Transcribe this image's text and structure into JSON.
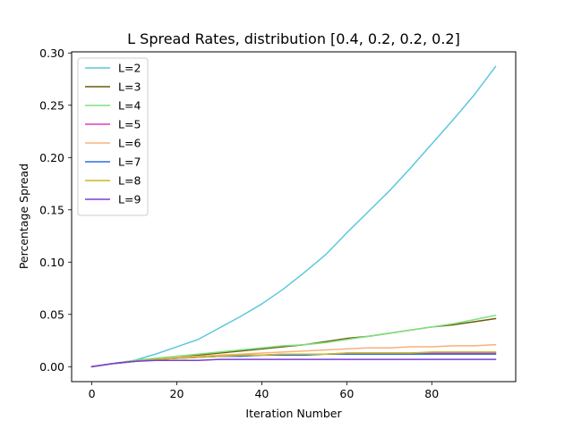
{
  "chart_data": {
    "type": "line",
    "title": "L Spread Rates, distribution [0.4, 0.2, 0.2, 0.2]",
    "xlabel": "Iteration Number",
    "ylabel": "Percentage Spread",
    "xlim": [
      -4.75,
      99.75
    ],
    "ylim": [
      -0.0143,
      0.3011
    ],
    "xticks": [
      0,
      20,
      40,
      60,
      80
    ],
    "xtick_labels": [
      "0",
      "20",
      "40",
      "60",
      "80"
    ],
    "yticks": [
      0.0,
      0.05,
      0.1,
      0.15,
      0.2,
      0.25,
      0.3
    ],
    "ytick_labels": [
      "0.00",
      "0.05",
      "0.10",
      "0.15",
      "0.20",
      "0.25",
      "0.30"
    ],
    "grid": false,
    "legend_position": "top-left",
    "x": [
      0,
      5,
      10,
      15,
      20,
      25,
      30,
      35,
      40,
      45,
      50,
      55,
      60,
      65,
      70,
      75,
      80,
      85,
      90,
      95
    ],
    "series": [
      {
        "name": "L=2",
        "color": "#5bc8dc",
        "values": [
          0.0,
          0.003,
          0.006,
          0.012,
          0.019,
          0.026,
          0.037,
          0.048,
          0.06,
          0.074,
          0.09,
          0.107,
          0.128,
          0.148,
          0.168,
          0.19,
          0.213,
          0.236,
          0.26,
          0.287
        ]
      },
      {
        "name": "L=3",
        "color": "#6b5a0e",
        "values": [
          0.0,
          0.003,
          0.005,
          0.007,
          0.009,
          0.011,
          0.013,
          0.015,
          0.017,
          0.019,
          0.021,
          0.024,
          0.027,
          0.029,
          0.032,
          0.035,
          0.038,
          0.04,
          0.043,
          0.046
        ]
      },
      {
        "name": "L=4",
        "color": "#7ee27e",
        "values": [
          0.0,
          0.003,
          0.006,
          0.008,
          0.01,
          0.012,
          0.014,
          0.016,
          0.018,
          0.02,
          0.021,
          0.023,
          0.026,
          0.029,
          0.032,
          0.035,
          0.038,
          0.041,
          0.045,
          0.049
        ]
      },
      {
        "name": "L=5",
        "color": "#e03cc0",
        "values": [
          0.0,
          0.003,
          0.005,
          0.007,
          0.008,
          0.009,
          0.01,
          0.011,
          0.011,
          0.012,
          0.012,
          0.012,
          0.013,
          0.013,
          0.013,
          0.013,
          0.013,
          0.013,
          0.013,
          0.013
        ]
      },
      {
        "name": "L=6",
        "color": "#f5b27a",
        "values": [
          0.0,
          0.003,
          0.005,
          0.007,
          0.009,
          0.01,
          0.011,
          0.012,
          0.013,
          0.014,
          0.015,
          0.016,
          0.017,
          0.018,
          0.018,
          0.019,
          0.019,
          0.02,
          0.02,
          0.021
        ]
      },
      {
        "name": "L=7",
        "color": "#2f6fe0",
        "values": [
          0.0,
          0.003,
          0.005,
          0.007,
          0.008,
          0.009,
          0.01,
          0.01,
          0.011,
          0.011,
          0.011,
          0.012,
          0.012,
          0.012,
          0.012,
          0.012,
          0.012,
          0.012,
          0.012,
          0.012
        ]
      },
      {
        "name": "L=8",
        "color": "#c8b820",
        "values": [
          0.0,
          0.003,
          0.005,
          0.007,
          0.008,
          0.009,
          0.01,
          0.011,
          0.011,
          0.012,
          0.012,
          0.012,
          0.013,
          0.013,
          0.013,
          0.013,
          0.014,
          0.014,
          0.014,
          0.014
        ]
      },
      {
        "name": "L=9",
        "color": "#7a3fd6",
        "values": [
          0.0,
          0.003,
          0.005,
          0.006,
          0.006,
          0.006,
          0.007,
          0.007,
          0.007,
          0.007,
          0.007,
          0.007,
          0.007,
          0.007,
          0.007,
          0.007,
          0.007,
          0.007,
          0.007,
          0.007
        ]
      }
    ]
  }
}
